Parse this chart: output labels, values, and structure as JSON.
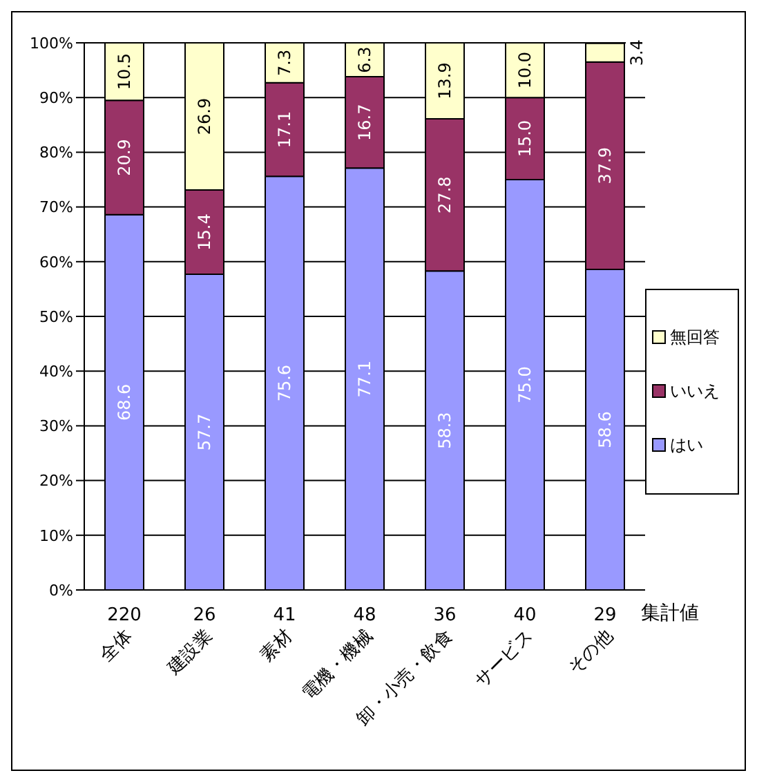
{
  "chart_data": {
    "type": "bar",
    "stacked": true,
    "categories": [
      "全体",
      "建設業",
      "素材",
      "電機・機械",
      "卸・小売・飲食",
      "サービス",
      "その他"
    ],
    "series": [
      {
        "name": "はい",
        "color": "#9999ff",
        "values": [
          68.6,
          57.7,
          75.6,
          77.1,
          58.3,
          75.0,
          58.6
        ],
        "value_labels": [
          "68.6",
          "57.7",
          "75.6",
          "77.1",
          "58.3",
          "75.0",
          "58.6"
        ]
      },
      {
        "name": "いいえ",
        "color": "#993366",
        "values": [
          20.9,
          15.4,
          17.1,
          16.7,
          27.8,
          15.0,
          37.9
        ],
        "value_labels": [
          "20.9",
          "15.4",
          "17.1",
          "16.7",
          "27.8",
          "15.0",
          "37.9"
        ]
      },
      {
        "name": "無回答",
        "color": "#ffffcc",
        "values": [
          10.5,
          26.9,
          7.3,
          6.3,
          13.9,
          10.0,
          3.4
        ],
        "value_labels": [
          "10.5",
          "26.9",
          "7.3",
          "6.3",
          "13.9",
          "10.0",
          "3.4"
        ]
      }
    ],
    "ylim": [
      0,
      100
    ],
    "yticks": [
      {
        "value": 0,
        "label": "0%"
      },
      {
        "value": 10,
        "label": "10%"
      },
      {
        "value": 20,
        "label": "20%"
      },
      {
        "value": 30,
        "label": "30%"
      },
      {
        "value": 40,
        "label": "40%"
      },
      {
        "value": 50,
        "label": "50%"
      },
      {
        "value": 60,
        "label": "60%"
      },
      {
        "value": 70,
        "label": "70%"
      },
      {
        "value": 80,
        "label": "80%"
      },
      {
        "value": 90,
        "label": "90%"
      },
      {
        "value": 100,
        "label": "100%"
      }
    ],
    "grid": "y",
    "legend": "right",
    "annotations": [
      "220",
      "26",
      "41",
      "48",
      "36",
      "40",
      "29",
      "集計値"
    ]
  }
}
